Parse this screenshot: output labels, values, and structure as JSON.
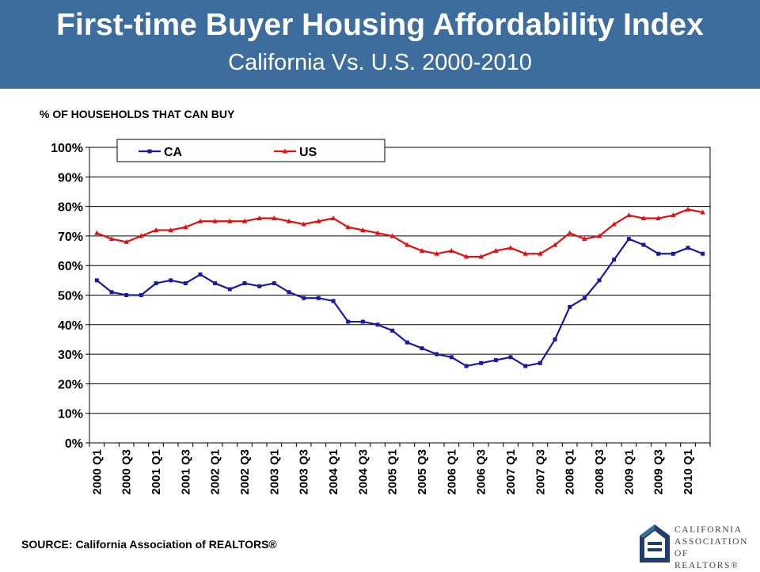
{
  "header": {
    "title": "First-time Buyer Housing Affordability Index",
    "subtitle": "California Vs. U.S. 2000-2010",
    "background_color": "#3d6d9c"
  },
  "source": "SOURCE: California Association of REALTORS®",
  "logo": {
    "lines": [
      "CALIFORNIA",
      "ASSOCIATION",
      "OF REALTORS®"
    ],
    "icon": "realtors-logo-icon"
  },
  "chart_data": {
    "type": "line",
    "ylabel": "% OF HOUSEHOLDS THAT CAN BUY",
    "ylim": [
      0,
      100
    ],
    "yticks": [
      "0%",
      "10%",
      "20%",
      "30%",
      "40%",
      "50%",
      "60%",
      "70%",
      "80%",
      "90%",
      "100%"
    ],
    "grid": true,
    "legend_position": "top",
    "categories": [
      "2000 Q1",
      "2000 Q2",
      "2000 Q3",
      "2000 Q4",
      "2001 Q1",
      "2001 Q2",
      "2001 Q3",
      "2001 Q4",
      "2002 Q1",
      "2002 Q2",
      "2002 Q3",
      "2002 Q4",
      "2003 Q1",
      "2003 Q2",
      "2003 Q3",
      "2003 Q4",
      "2004 Q1",
      "2004 Q2",
      "2004 Q3",
      "2004 Q4",
      "2005 Q1",
      "2005 Q2",
      "2005 Q3",
      "2005 Q4",
      "2006 Q1",
      "2006 Q2",
      "2006 Q3",
      "2006 Q4",
      "2007 Q1",
      "2007 Q2",
      "2007 Q3",
      "2007 Q4",
      "2008 Q1",
      "2008 Q2",
      "2008 Q3",
      "2008 Q4",
      "2009 Q1",
      "2009 Q2",
      "2009 Q3",
      "2009 Q4",
      "2010 Q1",
      "2010 Q2"
    ],
    "tick_labels": [
      "2000 Q1",
      "2000 Q3",
      "2001 Q1",
      "2001 Q3",
      "2002 Q1",
      "2002 Q3",
      "2003 Q1",
      "2003 Q3",
      "2004 Q1",
      "2004 Q3",
      "2005 Q1",
      "2005 Q3",
      "2006 Q1",
      "2006 Q3",
      "2007 Q1",
      "2007 Q3",
      "2008 Q1",
      "2008 Q3",
      "2009 Q1",
      "2009 Q3",
      "2010 Q1"
    ],
    "series": [
      {
        "name": "CA",
        "color": "#1a1aa0",
        "marker": "square",
        "values": [
          55,
          51,
          50,
          50,
          54,
          55,
          54,
          57,
          54,
          52,
          54,
          53,
          54,
          51,
          49,
          49,
          48,
          41,
          41,
          40,
          38,
          34,
          32,
          30,
          29,
          26,
          27,
          28,
          29,
          26,
          27,
          35,
          46,
          49,
          55,
          62,
          69,
          67,
          64,
          64,
          66,
          64
        ]
      },
      {
        "name": "US",
        "color": "#e01010",
        "marker": "triangle",
        "values": [
          71,
          69,
          68,
          70,
          72,
          72,
          73,
          75,
          75,
          75,
          75,
          76,
          76,
          75,
          74,
          75,
          76,
          73,
          72,
          71,
          70,
          67,
          65,
          64,
          65,
          63,
          63,
          65,
          66,
          64,
          64,
          67,
          71,
          69,
          70,
          74,
          77,
          76,
          76,
          77,
          79,
          78
        ]
      }
    ]
  }
}
